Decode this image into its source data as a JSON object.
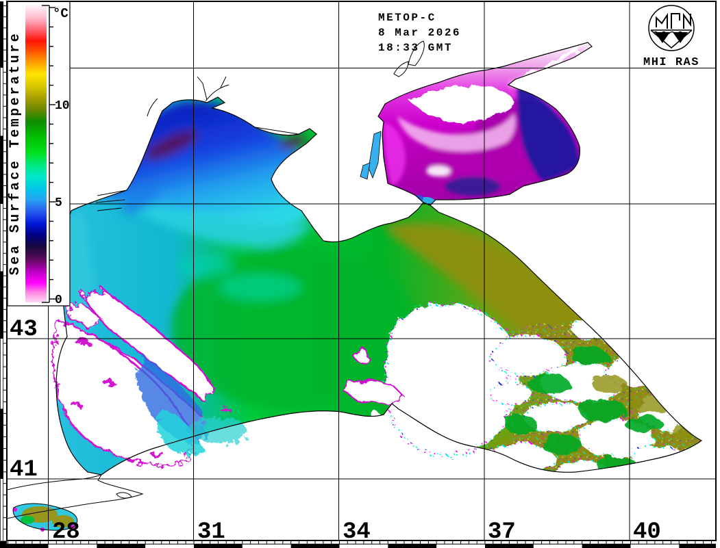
{
  "header": {
    "satellite": "METOP-C",
    "date": "8 Mar 2026",
    "time": "18:33 GMT"
  },
  "logo": {
    "org": "MHI RAS"
  },
  "colorbar": {
    "title": "Sea Surface Temperature",
    "unit": "°C",
    "tick_labels": [
      "10",
      "5",
      "0"
    ],
    "tick_values": [
      10,
      5,
      0
    ],
    "scale_min": 0,
    "scale_max": 15.2,
    "palette_stops": [
      {
        "t": 0.0,
        "c": "#ffd8f4"
      },
      {
        "t": 0.5,
        "c": "#ff8ae4"
      },
      {
        "t": 1.0,
        "c": "#ff00ff"
      },
      {
        "t": 1.6,
        "c": "#b800c0"
      },
      {
        "t": 2.2,
        "c": "#5c0a5c"
      },
      {
        "t": 2.8,
        "c": "#1a0a3c"
      },
      {
        "t": 3.4,
        "c": "#000080"
      },
      {
        "t": 4.0,
        "c": "#0018d8"
      },
      {
        "t": 4.6,
        "c": "#2858f0"
      },
      {
        "t": 5.2,
        "c": "#28a0f0"
      },
      {
        "t": 5.8,
        "c": "#00c8e8"
      },
      {
        "t": 6.4,
        "c": "#00e8c8"
      },
      {
        "t": 7.0,
        "c": "#00e880"
      },
      {
        "t": 7.6,
        "c": "#00e020"
      },
      {
        "t": 8.4,
        "c": "#00c000"
      },
      {
        "t": 9.2,
        "c": "#108c00"
      },
      {
        "t": 9.8,
        "c": "#6a8800"
      },
      {
        "t": 10.4,
        "c": "#a8a000"
      },
      {
        "t": 11.0,
        "c": "#d8c800"
      },
      {
        "t": 11.6,
        "c": "#ffe400"
      },
      {
        "t": 12.2,
        "c": "#ffa000"
      },
      {
        "t": 12.8,
        "c": "#ff5000"
      },
      {
        "t": 13.3,
        "c": "#ff1408"
      },
      {
        "t": 13.9,
        "c": "#ff6878"
      },
      {
        "t": 14.4,
        "c": "#ffb4c8"
      },
      {
        "t": 15.2,
        "c": "#ffffff"
      }
    ]
  },
  "grid": {
    "lon_labels": [
      "28",
      "31",
      "34",
      "37",
      "40"
    ],
    "lat_labels": [
      "43",
      "41"
    ]
  }
}
